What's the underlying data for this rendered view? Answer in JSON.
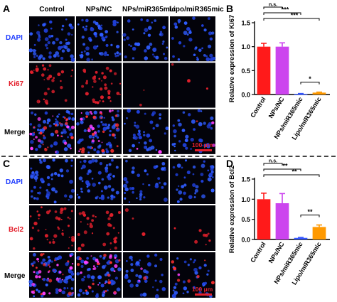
{
  "panels": {
    "A": {
      "letter": "A",
      "columns": [
        "Control",
        "NPs/NC",
        "NPs/miR365mic",
        "Lipo/miR365mic"
      ],
      "rows": [
        "DAPI",
        "Ki67",
        "Merge"
      ],
      "scale_bar": "100 μm"
    },
    "C": {
      "letter": "C",
      "columns": [],
      "rows": [
        "DAPI",
        "Bcl2",
        "Merge"
      ],
      "scale_bar": "100 μm"
    },
    "B": {
      "letter": "B"
    },
    "D": {
      "letter": "D"
    }
  },
  "colors": {
    "dapi_blue": "#2f5cff",
    "marker_red": "#e4202c",
    "control": "#ff1a1a",
    "nps_nc": "#cc44ee",
    "nps_mir": "#3355ff",
    "lipo_mir": "#ff9900"
  },
  "chart_data": [
    {
      "type": "bar",
      "panel": "B",
      "categories": [
        "Control",
        "NPs/NC",
        "NPs/miR365mic",
        "Lipo/miR365mic"
      ],
      "values": [
        1.0,
        1.0,
        0.01,
        0.04
      ],
      "errors": [
        0.07,
        0.08,
        0.01,
        0.01
      ],
      "bar_colors": [
        "#ff1a1a",
        "#cc44ee",
        "#3355ff",
        "#ff9900"
      ],
      "ylabel": "Relative expression of Ki67",
      "ylim": [
        0,
        1.5
      ],
      "yticks": [
        "0.0",
        "0.5",
        "1.0",
        "1.5"
      ],
      "significance": [
        {
          "from": 0,
          "to": 1,
          "label": "n.s."
        },
        {
          "from": 0,
          "to": 2,
          "label": "***"
        },
        {
          "from": 0,
          "to": 3,
          "label": "***"
        },
        {
          "from": 2,
          "to": 3,
          "label": "*"
        }
      ]
    },
    {
      "type": "bar",
      "panel": "D",
      "categories": [
        "Control",
        "NPs/NC",
        "NPs/miR365mic",
        "Lipo/miR365mic"
      ],
      "values": [
        1.0,
        0.9,
        0.04,
        0.31
      ],
      "errors": [
        0.15,
        0.24,
        0.01,
        0.05
      ],
      "bar_colors": [
        "#ff1a1a",
        "#cc44ee",
        "#3355ff",
        "#ff9900"
      ],
      "ylabel": "Relative expression of Bcl2",
      "ylim": [
        0,
        1.5
      ],
      "yticks": [
        "0.0",
        "0.5",
        "1.0",
        "1.5"
      ],
      "significance": [
        {
          "from": 0,
          "to": 1,
          "label": "n.s."
        },
        {
          "from": 0,
          "to": 2,
          "label": "**"
        },
        {
          "from": 0,
          "to": 3,
          "label": "**"
        },
        {
          "from": 2,
          "to": 3,
          "label": "**"
        }
      ]
    }
  ]
}
